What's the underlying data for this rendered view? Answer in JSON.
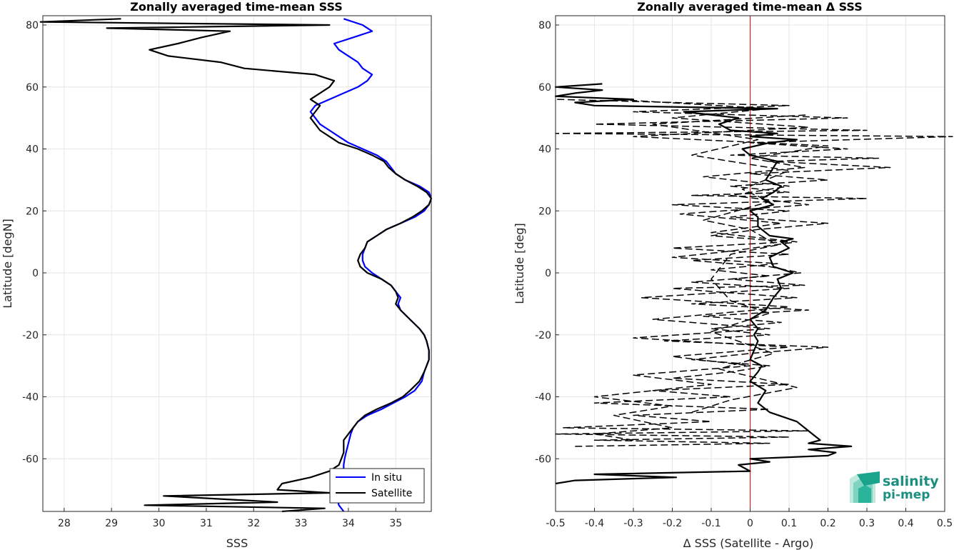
{
  "chart_data": [
    {
      "type": "line",
      "title": "Zonally averaged time-mean SSS",
      "xlabel": "SSS",
      "ylabel": "Latitude [degN]",
      "xlim": [
        27.55,
        35.75
      ],
      "ylim": [
        -77,
        83
      ],
      "xticks": [
        28,
        29,
        30,
        31,
        32,
        33,
        34,
        35
      ],
      "yticks": [
        -60,
        -40,
        -20,
        0,
        20,
        40,
        60,
        80
      ],
      "grid": true,
      "legend": {
        "placement": "bottom-right",
        "entries": [
          "In situ",
          "Satellite"
        ]
      },
      "series": [
        {
          "name": "In situ",
          "color": "#0000ff",
          "style": "solid",
          "lat": [
            -77,
            -75,
            -72,
            -70,
            -68,
            -65,
            -62,
            -60,
            -58,
            -55,
            -52,
            -50,
            -48,
            -46,
            -44,
            -42,
            -40,
            -38,
            -35,
            -32,
            -30,
            -28,
            -25,
            -22,
            -20,
            -18,
            -15,
            -12,
            -10,
            -8,
            -6,
            -4,
            -2,
            0,
            2,
            4,
            6,
            8,
            10,
            12,
            14,
            16,
            18,
            20,
            22,
            24,
            26,
            28,
            30,
            32,
            34,
            36,
            38,
            40,
            42,
            44,
            46,
            48,
            50,
            52,
            54,
            56,
            58,
            60,
            62,
            64,
            66,
            68,
            70,
            72,
            74,
            76,
            78,
            80,
            82
          ],
          "values": [
            33.9,
            33.8,
            33.75,
            33.8,
            33.85,
            33.9,
            33.9,
            33.92,
            33.95,
            34.0,
            34.05,
            34.1,
            34.2,
            34.4,
            34.7,
            34.95,
            35.2,
            35.4,
            35.55,
            35.6,
            35.65,
            35.7,
            35.7,
            35.65,
            35.6,
            35.5,
            35.3,
            35.1,
            35.05,
            35.1,
            35.0,
            34.9,
            34.7,
            34.5,
            34.35,
            34.3,
            34.3,
            34.35,
            34.4,
            34.6,
            34.8,
            35.1,
            35.4,
            35.6,
            35.7,
            35.75,
            35.7,
            35.5,
            35.2,
            35.0,
            34.9,
            34.8,
            34.6,
            34.3,
            34.0,
            33.8,
            33.6,
            33.4,
            33.3,
            33.2,
            33.3,
            33.6,
            33.9,
            34.2,
            34.4,
            34.5,
            34.3,
            34.2,
            34.0,
            33.8,
            33.7,
            34.1,
            34.5,
            34.3,
            33.9
          ]
        },
        {
          "name": "Satellite",
          "color": "#000000",
          "style": "solid",
          "lat": [
            -77,
            -76,
            -75,
            -74,
            -72,
            -71,
            -70,
            -68,
            -66,
            -64,
            -62,
            -60,
            -58,
            -56,
            -54,
            -52,
            -50,
            -48,
            -46,
            -44,
            -42,
            -40,
            -38,
            -35,
            -32,
            -30,
            -28,
            -25,
            -22,
            -20,
            -18,
            -15,
            -12,
            -10,
            -8,
            -6,
            -4,
            -2,
            0,
            2,
            4,
            6,
            8,
            10,
            12,
            14,
            16,
            18,
            20,
            22,
            24,
            26,
            28,
            30,
            32,
            34,
            36,
            38,
            40,
            42,
            44,
            46,
            48,
            50,
            52,
            54,
            56,
            58,
            60,
            62,
            64,
            66,
            68,
            70,
            72,
            74,
            76,
            78,
            79,
            80,
            81,
            82
          ],
          "values": [
            32.6,
            33.5,
            29.7,
            32.5,
            30.1,
            33.6,
            32.5,
            32.6,
            33.2,
            33.6,
            33.8,
            33.85,
            33.9,
            33.9,
            33.9,
            34.0,
            34.1,
            34.2,
            34.35,
            34.6,
            34.9,
            35.15,
            35.3,
            35.5,
            35.6,
            35.65,
            35.7,
            35.7,
            35.65,
            35.6,
            35.5,
            35.3,
            35.1,
            35.0,
            35.05,
            35.0,
            34.9,
            34.7,
            34.4,
            34.25,
            34.2,
            34.25,
            34.35,
            34.4,
            34.6,
            34.8,
            35.1,
            35.35,
            35.55,
            35.7,
            35.75,
            35.65,
            35.45,
            35.2,
            35.0,
            34.85,
            34.75,
            34.5,
            34.2,
            33.8,
            33.6,
            33.4,
            33.3,
            33.2,
            33.3,
            33.4,
            33.2,
            33.4,
            33.6,
            33.7,
            33.3,
            31.8,
            31.3,
            30.2,
            29.8,
            30.4,
            30.9,
            31.5,
            28.9,
            33.6,
            27.5,
            29.2
          ]
        }
      ]
    },
    {
      "type": "line",
      "title": "Zonally averaged time-mean Δ SSS",
      "xlabel": "Δ SSS (Satellite - Argo)",
      "ylabel": "Latitude [deg]",
      "xlim": [
        -0.5,
        0.5
      ],
      "ylim": [
        -77,
        83
      ],
      "xticks": [
        -0.5,
        -0.4,
        -0.3,
        -0.2,
        -0.1,
        0,
        0.1,
        0.2,
        0.3,
        0.4,
        0.5
      ],
      "yticks": [
        -60,
        -40,
        -20,
        0,
        20,
        40,
        60,
        80
      ],
      "grid": true,
      "reference_line": {
        "x": 0,
        "color": "#ff0000"
      },
      "series": [
        {
          "color": "#000000",
          "style": "solid",
          "lat": [
            -68,
            -67,
            -66,
            -65,
            -64,
            -62,
            -61,
            -60,
            -59,
            -58,
            -57,
            -56,
            -55,
            -54,
            -52,
            -50,
            -48,
            -45,
            -42,
            -40,
            -38,
            -35,
            -32,
            -30,
            -28,
            -25,
            -22,
            -20,
            -18,
            -15,
            -12,
            -10,
            -8,
            -5,
            -2,
            0,
            2,
            5,
            8,
            10,
            11,
            12,
            15,
            18,
            20,
            22,
            24,
            26,
            28,
            30,
            32,
            34,
            36,
            38,
            40,
            42,
            43,
            44,
            45,
            46,
            48,
            50,
            52,
            53,
            54,
            55,
            56,
            57,
            58,
            59,
            60,
            61
          ],
          "values": [
            -0.5,
            -0.45,
            -0.19,
            -0.4,
            0.0,
            -0.03,
            0.05,
            0.0,
            0.2,
            0.22,
            0.15,
            0.26,
            0.15,
            0.18,
            0.16,
            0.14,
            0.12,
            0.05,
            0.02,
            0.03,
            0.04,
            0.0,
            0.02,
            0.03,
            0.0,
            0.01,
            0.02,
            0.01,
            0.02,
            0.0,
            0.04,
            0.05,
            0.06,
            0.08,
            0.07,
            0.11,
            0.06,
            0.05,
            0.1,
            0.08,
            0.11,
            0.05,
            0.02,
            0.02,
            0.0,
            0.06,
            0.03,
            0.06,
            0.08,
            0.04,
            0.05,
            0.06,
            0.07,
            0.0,
            -0.02,
            0.05,
            0.12,
            0.0,
            0.07,
            -0.05,
            -0.08,
            -0.03,
            -0.17,
            0.07,
            -0.4,
            -0.45,
            -0.3,
            -0.5,
            -0.45,
            -0.38,
            -0.5,
            -0.38
          ]
        },
        {
          "color": "#000000",
          "style": "dashed",
          "lat": [
            -56,
            -55,
            -54,
            -53,
            -52,
            -51,
            -50,
            -48,
            -46,
            -44,
            -42,
            -40,
            -38,
            -36,
            -34,
            -32,
            -30,
            -28,
            -26,
            -24,
            -22,
            -20,
            -18,
            -16,
            -14,
            -12,
            -10,
            -8,
            -6,
            -5,
            -4,
            -2,
            0,
            2,
            4,
            6,
            8,
            10,
            12,
            14,
            16,
            18,
            20,
            22,
            24,
            25,
            26,
            28,
            30,
            32,
            34,
            36,
            37,
            38,
            40,
            42,
            44,
            45,
            46,
            48,
            50,
            52,
            54,
            56
          ],
          "values": [
            -0.45,
            0.05,
            -0.4,
            0.1,
            -0.5,
            0.15,
            -0.48,
            -0.1,
            -0.3,
            0.05,
            -0.4,
            -0.05,
            -0.25,
            0.1,
            -0.2,
            -0.05,
            0.05,
            -0.15,
            0.0,
            0.2,
            -0.22,
            0.05,
            -0.1,
            0.08,
            -0.12,
            0.15,
            -0.15,
            0.12,
            -0.1,
            -0.2,
            0.14,
            -0.05,
            0.13,
            0.05,
            -0.15,
            0.1,
            -0.2,
            0.1,
            -0.1,
            0.02,
            0.2,
            -0.05,
            0.1,
            -0.2,
            0.3,
            -0.15,
            0.1,
            -0.05,
            0.2,
            0.0,
            0.36,
            0.05,
            0.33,
            -0.05,
            0.25,
            0.0,
            0.52,
            -0.5,
            0.3,
            -0.4,
            0.25,
            -0.3,
            0.1,
            -0.5
          ]
        },
        {
          "color": "#000000",
          "style": "dashed",
          "lat": [
            -54,
            -52,
            -50,
            -46,
            -43,
            -40,
            -36,
            -33,
            -30,
            -27,
            -24,
            -21,
            -18,
            -15,
            -11,
            -8,
            -5,
            -3,
            -1,
            1,
            3,
            5,
            7,
            10,
            13,
            16,
            19,
            22,
            25,
            28,
            31,
            34,
            37,
            41,
            44,
            47,
            50,
            53,
            56
          ],
          "values": [
            -0.3,
            -0.4,
            -0.2,
            -0.35,
            -0.2,
            -0.4,
            -0.1,
            -0.3,
            0.0,
            -0.2,
            0.1,
            -0.3,
            0.05,
            -0.25,
            0.1,
            -0.28,
            0.1,
            -0.15,
            0.05,
            -0.1,
            0.07,
            -0.2,
            -0.05,
            0.12,
            -0.1,
            0.08,
            -0.18,
            0.15,
            -0.05,
            0.1,
            -0.12,
            0.14,
            0.0,
            0.2,
            -0.3,
            0.15,
            -0.2,
            0.05,
            -0.35
          ]
        },
        {
          "color": "#000000",
          "style": "dashed",
          "lat": [
            -45,
            -41,
            -37,
            -31,
            -26,
            -19,
            -13,
            -9,
            -2,
            6,
            9,
            14,
            17,
            23,
            27,
            33,
            38,
            43,
            48,
            51
          ],
          "values": [
            -0.15,
            -0.05,
            0.12,
            -0.08,
            0.06,
            -0.1,
            0.05,
            -0.05,
            -0.1,
            -0.05,
            0.07,
            0.0,
            -0.12,
            0.05,
            -0.02,
            0.1,
            -0.15,
            0.02,
            -0.25,
            0.15
          ]
        }
      ]
    }
  ],
  "logo": {
    "line1": "salinity",
    "line2": "pi-mep",
    "accent": "#1aa38d"
  }
}
